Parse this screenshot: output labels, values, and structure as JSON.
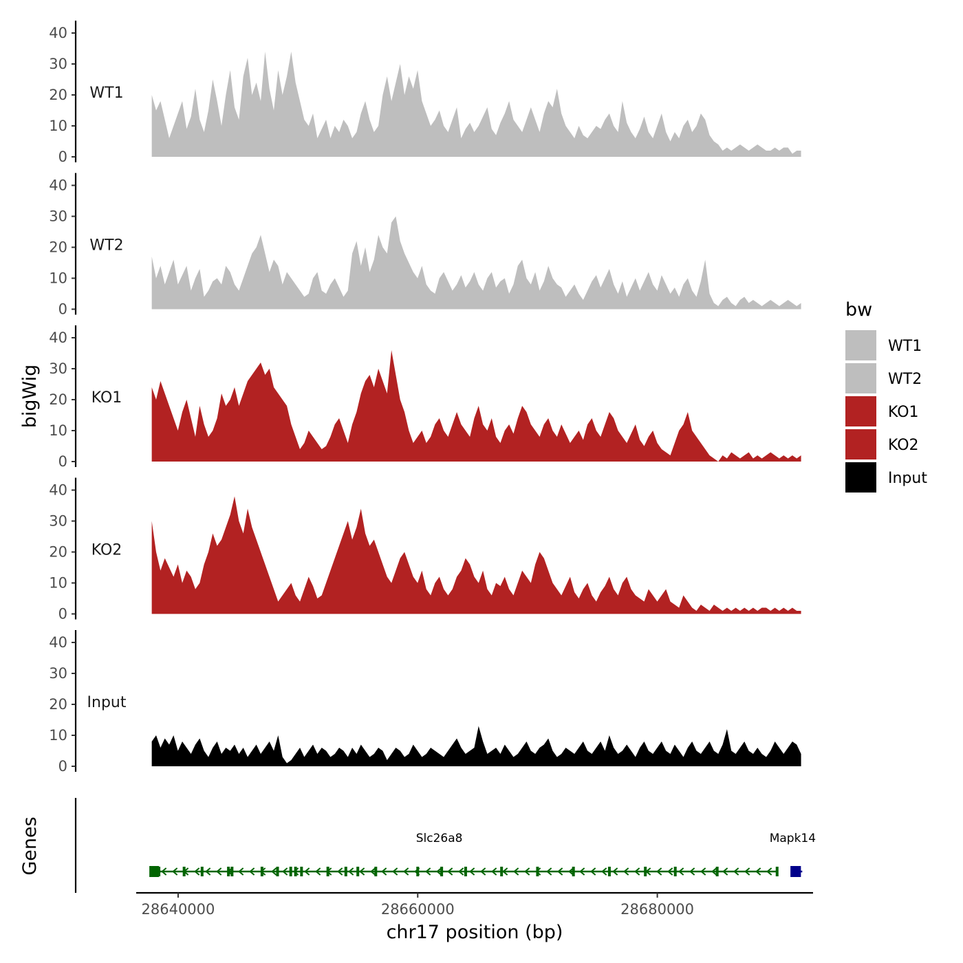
{
  "chart_data": {
    "type": "area",
    "y_axis_title": "bigWig",
    "genes_axis_title": "Genes",
    "x_axis_title": "chr17 position (bp)",
    "x_range": [
      28636500,
      28693000
    ],
    "x_ticks": [
      28640000,
      28660000,
      28680000
    ],
    "x_tick_labels": [
      "28640000",
      "28660000",
      "28680000"
    ],
    "y_range": [
      0,
      43
    ],
    "y_ticks": [
      0,
      10,
      20,
      30,
      40
    ],
    "y_tick_labels": [
      "0",
      "10",
      "20",
      "30",
      "40"
    ],
    "data_start": 28637800,
    "data_end": 28692000,
    "series": [
      {
        "name": "WT1",
        "color": "#bebebe",
        "values": [
          20,
          15,
          18,
          12,
          6,
          10,
          14,
          18,
          9,
          13,
          22,
          12,
          8,
          15,
          25,
          18,
          10,
          20,
          28,
          16,
          12,
          26,
          32,
          20,
          24,
          18,
          34,
          22,
          15,
          28,
          20,
          26,
          34,
          24,
          18,
          12,
          10,
          14,
          6,
          9,
          12,
          6,
          10,
          8,
          12,
          10,
          6,
          8,
          14,
          18,
          12,
          8,
          10,
          20,
          26,
          18,
          24,
          30,
          20,
          26,
          22,
          28,
          18,
          14,
          10,
          12,
          15,
          10,
          8,
          12,
          16,
          6,
          9,
          11,
          8,
          10,
          13,
          16,
          9,
          7,
          11,
          14,
          18,
          12,
          10,
          8,
          12,
          16,
          12,
          8,
          14,
          18,
          16,
          22,
          14,
          10,
          8,
          6,
          10,
          7,
          6,
          8,
          10,
          9,
          12,
          14,
          10,
          8,
          18,
          11,
          8,
          6,
          9,
          13,
          8,
          6,
          10,
          14,
          8,
          5,
          8,
          6,
          10,
          12,
          8,
          10,
          14,
          12,
          7,
          5,
          4,
          2,
          3,
          2,
          3,
          4,
          3,
          2,
          3,
          4,
          3,
          2,
          2,
          3,
          2,
          3,
          3,
          1,
          2,
          2
        ]
      },
      {
        "name": "WT2",
        "color": "#bebebe",
        "values": [
          17,
          10,
          14,
          8,
          12,
          16,
          8,
          11,
          14,
          6,
          10,
          13,
          4,
          6,
          9,
          10,
          8,
          14,
          12,
          8,
          6,
          10,
          14,
          18,
          20,
          24,
          18,
          12,
          16,
          14,
          8,
          12,
          10,
          8,
          6,
          4,
          5,
          10,
          12,
          6,
          5,
          8,
          10,
          7,
          4,
          6,
          18,
          22,
          14,
          20,
          12,
          16,
          24,
          20,
          18,
          28,
          30,
          22,
          18,
          15,
          12,
          10,
          14,
          8,
          6,
          5,
          10,
          12,
          9,
          6,
          8,
          11,
          7,
          9,
          12,
          8,
          6,
          10,
          12,
          7,
          9,
          10,
          5,
          8,
          14,
          16,
          10,
          8,
          12,
          6,
          9,
          14,
          10,
          8,
          7,
          4,
          6,
          8,
          5,
          3,
          6,
          9,
          11,
          7,
          10,
          13,
          8,
          5,
          9,
          4,
          7,
          10,
          6,
          9,
          12,
          8,
          6,
          11,
          8,
          5,
          7,
          4,
          8,
          10,
          6,
          4,
          9,
          16,
          5,
          2,
          1,
          3,
          4,
          2,
          1,
          3,
          4,
          2,
          3,
          2,
          1,
          2,
          3,
          2,
          1,
          2,
          3,
          2,
          1,
          2
        ]
      },
      {
        "name": "KO1",
        "color": "#b22222",
        "values": [
          24,
          20,
          26,
          22,
          18,
          14,
          10,
          16,
          20,
          14,
          8,
          18,
          12,
          8,
          10,
          14,
          22,
          18,
          20,
          24,
          18,
          22,
          26,
          28,
          30,
          32,
          28,
          30,
          24,
          22,
          20,
          18,
          12,
          8,
          4,
          6,
          10,
          8,
          6,
          4,
          5,
          8,
          12,
          14,
          10,
          6,
          12,
          16,
          22,
          26,
          28,
          24,
          30,
          26,
          22,
          36,
          28,
          20,
          16,
          10,
          6,
          8,
          10,
          6,
          8,
          12,
          14,
          10,
          8,
          12,
          16,
          12,
          10,
          8,
          14,
          18,
          12,
          10,
          14,
          8,
          6,
          10,
          12,
          9,
          14,
          18,
          16,
          12,
          10,
          8,
          12,
          14,
          10,
          8,
          12,
          9,
          6,
          8,
          10,
          7,
          12,
          14,
          10,
          8,
          12,
          16,
          14,
          10,
          8,
          6,
          9,
          12,
          7,
          5,
          8,
          10,
          6,
          4,
          3,
          2,
          6,
          10,
          12,
          16,
          10,
          8,
          6,
          4,
          2,
          1,
          0,
          2,
          1,
          3,
          2,
          1,
          2,
          3,
          1,
          2,
          1,
          2,
          3,
          2,
          1,
          2,
          1,
          2,
          1,
          2
        ]
      },
      {
        "name": "KO2",
        "color": "#b22222",
        "values": [
          30,
          20,
          14,
          18,
          15,
          12,
          16,
          10,
          14,
          12,
          8,
          10,
          16,
          20,
          26,
          22,
          24,
          28,
          32,
          38,
          30,
          26,
          34,
          28,
          24,
          20,
          16,
          12,
          8,
          4,
          6,
          8,
          10,
          6,
          4,
          8,
          12,
          9,
          5,
          6,
          10,
          14,
          18,
          22,
          26,
          30,
          24,
          28,
          34,
          26,
          22,
          24,
          20,
          16,
          12,
          10,
          14,
          18,
          20,
          16,
          12,
          10,
          14,
          8,
          6,
          10,
          12,
          8,
          6,
          8,
          12,
          14,
          18,
          16,
          12,
          10,
          14,
          8,
          6,
          10,
          9,
          12,
          8,
          6,
          10,
          14,
          12,
          10,
          16,
          20,
          18,
          14,
          10,
          8,
          6,
          9,
          12,
          7,
          5,
          8,
          10,
          6,
          4,
          7,
          9,
          12,
          8,
          6,
          10,
          12,
          8,
          6,
          5,
          4,
          8,
          6,
          4,
          6,
          8,
          4,
          3,
          2,
          6,
          4,
          2,
          1,
          3,
          2,
          1,
          3,
          2,
          1,
          2,
          1,
          2,
          1,
          2,
          1,
          2,
          1,
          2,
          2,
          1,
          2,
          1,
          2,
          1,
          2,
          1,
          1
        ]
      },
      {
        "name": "Input",
        "color": "#000000",
        "values": [
          8,
          10,
          6,
          9,
          7,
          10,
          5,
          8,
          6,
          4,
          7,
          9,
          5,
          3,
          6,
          8,
          4,
          6,
          5,
          7,
          4,
          6,
          3,
          5,
          7,
          4,
          6,
          8,
          5,
          10,
          3,
          1,
          2,
          4,
          6,
          3,
          5,
          7,
          4,
          6,
          5,
          3,
          4,
          6,
          5,
          3,
          6,
          4,
          7,
          5,
          3,
          4,
          6,
          5,
          2,
          4,
          6,
          5,
          3,
          4,
          7,
          5,
          3,
          4,
          6,
          5,
          4,
          3,
          5,
          7,
          9,
          6,
          4,
          5,
          6,
          13,
          8,
          4,
          5,
          6,
          4,
          7,
          5,
          3,
          4,
          6,
          8,
          5,
          4,
          6,
          7,
          9,
          5,
          3,
          4,
          6,
          5,
          4,
          6,
          8,
          5,
          4,
          6,
          8,
          5,
          10,
          6,
          4,
          5,
          7,
          5,
          3,
          6,
          8,
          5,
          4,
          6,
          8,
          5,
          4,
          7,
          5,
          3,
          6,
          8,
          5,
          4,
          6,
          8,
          5,
          4,
          7,
          12,
          5,
          4,
          6,
          8,
          5,
          4,
          6,
          4,
          3,
          5,
          8,
          6,
          4,
          6,
          8,
          7,
          4
        ]
      }
    ],
    "legend": {
      "title": "bw",
      "position": "right",
      "entries": [
        {
          "label": "WT1",
          "color": "#bebebe"
        },
        {
          "label": "WT2",
          "color": "#bebebe"
        },
        {
          "label": "KO1",
          "color": "#b22222"
        },
        {
          "label": "KO2",
          "color": "#b22222"
        },
        {
          "label": "Input",
          "color": "#000000"
        }
      ]
    },
    "genes": [
      {
        "name": "Slc26a8",
        "start": 28637800,
        "end": 28690000,
        "strand": "-",
        "color": "#006400",
        "exons": [
          28638000,
          28638400,
          28640500,
          28642000,
          28644200,
          28644500,
          28647000,
          28648300,
          28649400,
          28649800,
          28650300,
          28652500,
          28654000,
          28655000,
          28656500,
          28660000,
          28662000,
          28664000,
          28667000,
          28670000,
          28673000,
          28676000,
          28679000,
          28681500,
          28685000,
          28690000
        ]
      },
      {
        "name": "Mapk14",
        "start": 28691300,
        "end": 28692100,
        "strand": "+",
        "color": "#00008b",
        "exons": [
          28691400,
          28691700
        ]
      }
    ]
  }
}
